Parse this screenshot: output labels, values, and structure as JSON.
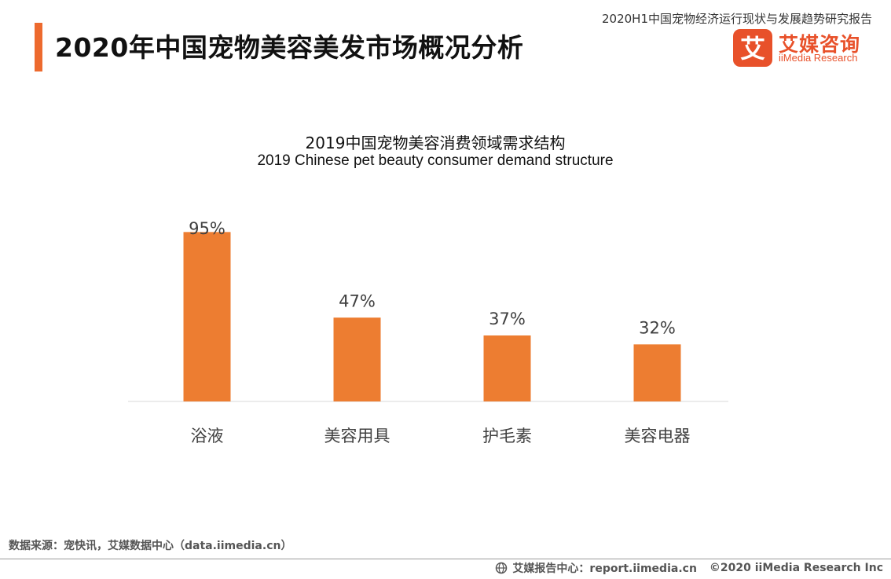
{
  "header": {
    "title": "2020年中国宠物美容美发市场概况分析",
    "report_name": "2020H1中国宠物经济运行现状与发展趋势研究报告"
  },
  "logo": {
    "mark_char": "艾",
    "name_cn": "艾媒咨询",
    "name_en": "iiMedia Research"
  },
  "colors": {
    "accent": "#ED6A2E",
    "bar": "#ED7D31",
    "logo": "#E8512A"
  },
  "chart_data": {
    "type": "bar",
    "title": "2019中国宠物美容消费领域需求结构",
    "subtitle": "2019 Chinese pet beauty consumer demand structure",
    "categories": [
      "浴液",
      "美容用具",
      "护毛素",
      "美容电器"
    ],
    "values": [
      95,
      47,
      37,
      32
    ],
    "value_labels": [
      "95%",
      "47%",
      "37%",
      "32%"
    ],
    "unit": "%",
    "xlabel": "",
    "ylabel": "",
    "ylim": [
      0,
      100
    ],
    "grid": false,
    "legend": "none"
  },
  "footer": {
    "source": "数据来源：宠快讯，艾媒数据中心（data.iimedia.cn）",
    "report_center": "艾媒报告中心：report.iimedia.cn",
    "copyright": "©2020  iiMedia Research  Inc"
  }
}
